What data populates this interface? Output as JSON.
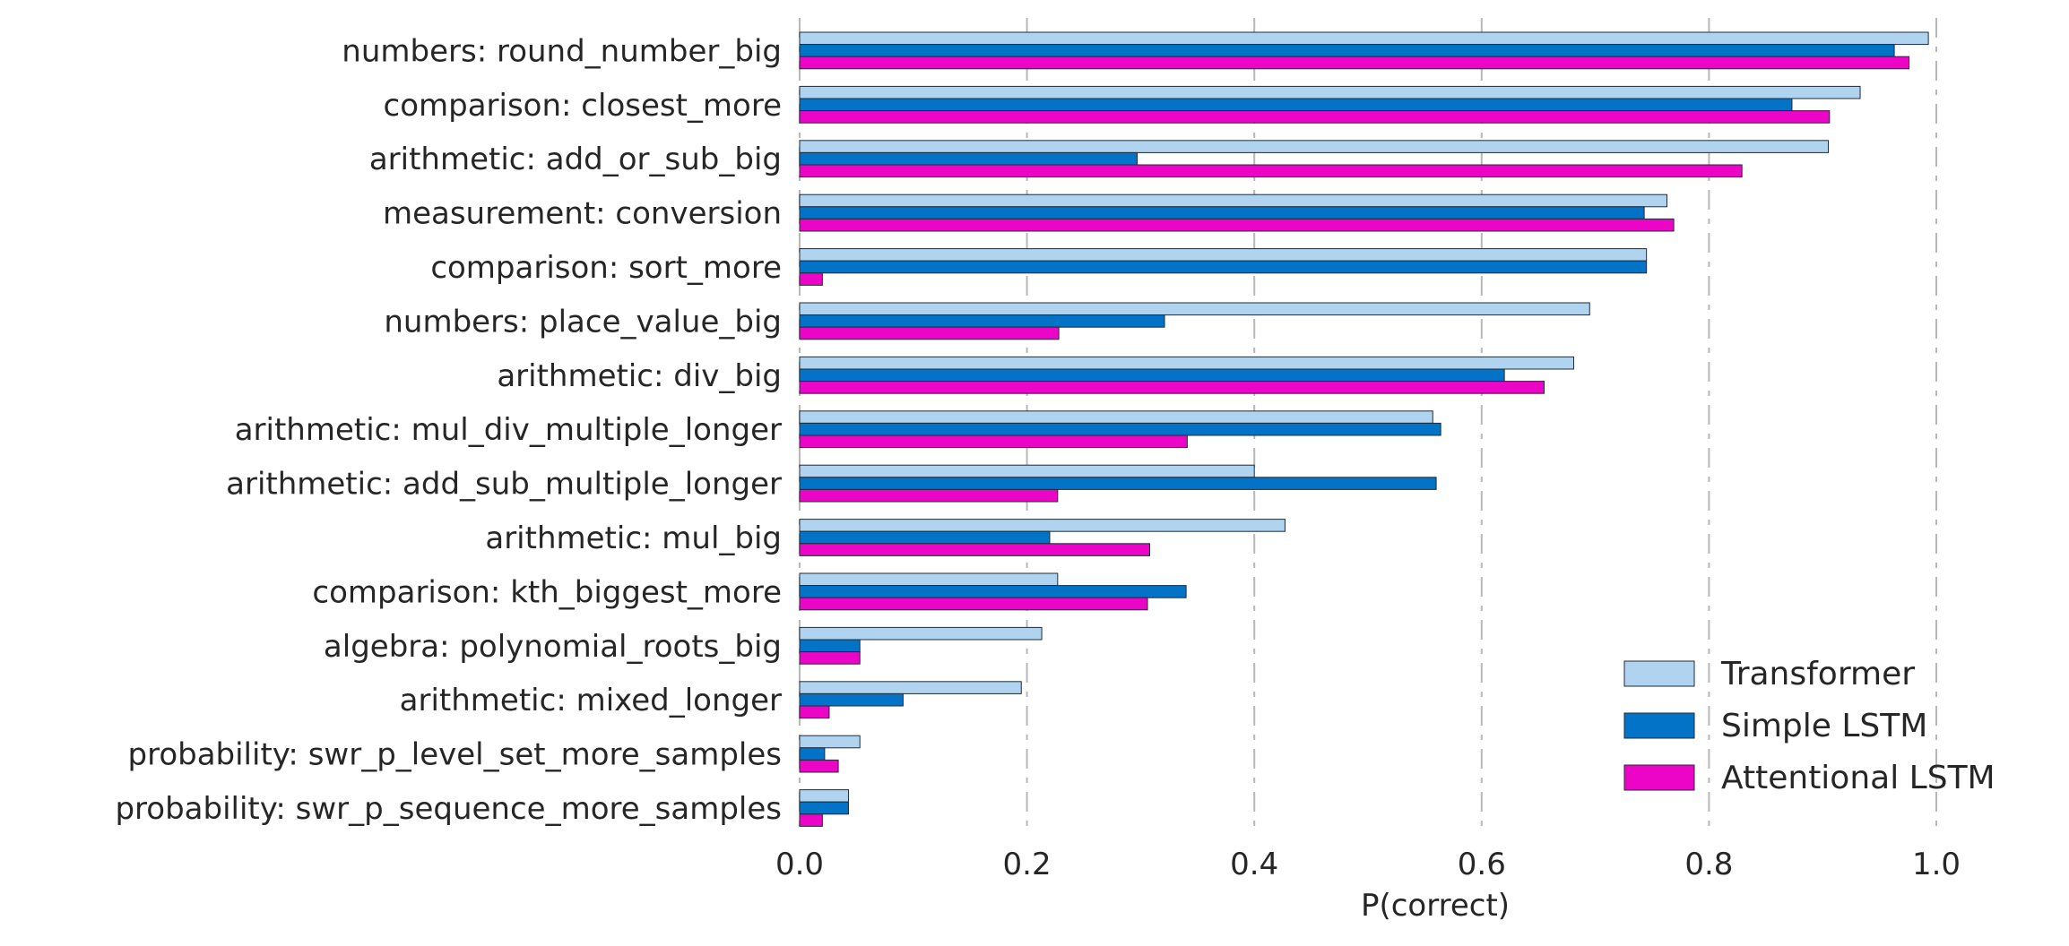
{
  "chart_data": {
    "type": "bar",
    "orientation": "horizontal",
    "categories": [
      "numbers: round_number_big",
      "comparison: closest_more",
      "arithmetic: add_or_sub_big",
      "measurement: conversion",
      "comparison: sort_more",
      "numbers: place_value_big",
      "arithmetic: div_big",
      "arithmetic: mul_div_multiple_longer",
      "arithmetic: add_sub_multiple_longer",
      "arithmetic: mul_big",
      "comparison: kth_biggest_more",
      "algebra: polynomial_roots_big",
      "arithmetic: mixed_longer",
      "probability: swr_p_level_set_more_samples",
      "probability: swr_p_sequence_more_samples"
    ],
    "series": [
      {
        "name": "Transformer",
        "color": "#b0d3ef",
        "values": [
          0.993,
          0.933,
          0.905,
          0.763,
          0.745,
          0.695,
          0.681,
          0.557,
          0.4,
          0.427,
          0.227,
          0.213,
          0.195,
          0.053,
          0.043
        ]
      },
      {
        "name": "Simple LSTM",
        "color": "#0273c7",
        "values": [
          0.963,
          0.873,
          0.297,
          0.743,
          0.745,
          0.321,
          0.62,
          0.564,
          0.56,
          0.22,
          0.34,
          0.053,
          0.091,
          0.022,
          0.043
        ]
      },
      {
        "name": "Attentional LSTM",
        "color": "#ec05c7",
        "values": [
          0.976,
          0.906,
          0.829,
          0.769,
          0.02,
          0.228,
          0.655,
          0.341,
          0.227,
          0.308,
          0.306,
          0.053,
          0.026,
          0.034,
          0.02
        ]
      }
    ],
    "xlabel": "P(correct)",
    "ylabel": "",
    "xlim": [
      0.0,
      1.0
    ],
    "xticks": [
      "0.0",
      "0.2",
      "0.4",
      "0.6",
      "0.8",
      "1.0"
    ],
    "grid": "vertical dashed",
    "legend_position": "lower-right"
  }
}
